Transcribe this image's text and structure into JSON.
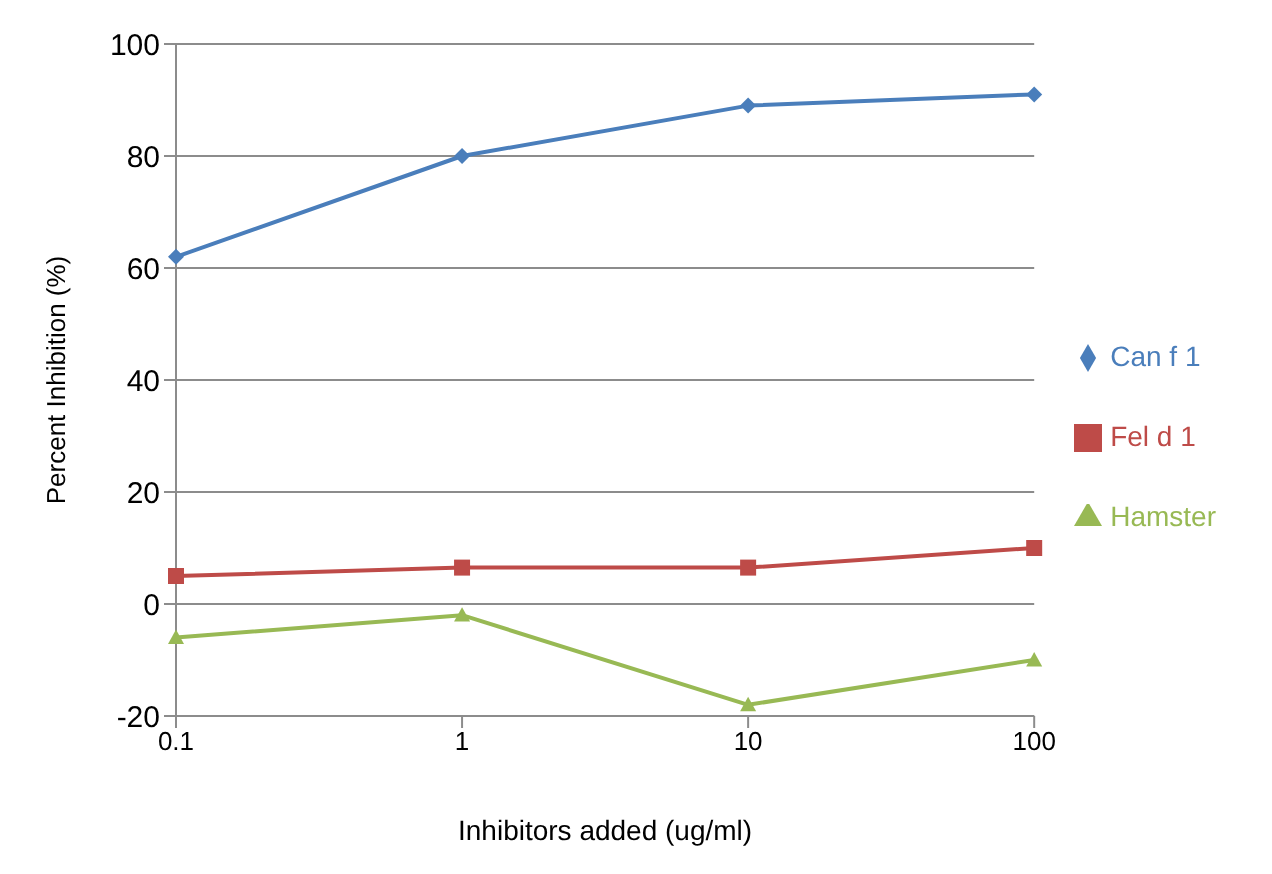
{
  "chart_data": {
    "type": "line",
    "xlabel": "Inhibitors added (ug/ml)",
    "ylabel": "Percent Inhibition (%)",
    "categories": [
      "0.1",
      "1",
      "10",
      "100"
    ],
    "ylim": [
      -20,
      100
    ],
    "yticks": [
      -20,
      0,
      20,
      40,
      60,
      80,
      100
    ],
    "grid": "y",
    "legend": "right",
    "series": [
      {
        "name": "Can f 1",
        "color": "#4a7ebb",
        "marker": "diamond",
        "values": [
          62,
          80,
          89,
          91
        ]
      },
      {
        "name": "Fel d 1",
        "color": "#be4b48",
        "marker": "square",
        "values": [
          5,
          6.5,
          6.5,
          10
        ]
      },
      {
        "name": "Hamster",
        "color": "#98b954",
        "marker": "triangle",
        "values": [
          -6,
          -2,
          -18,
          -10
        ]
      }
    ]
  }
}
